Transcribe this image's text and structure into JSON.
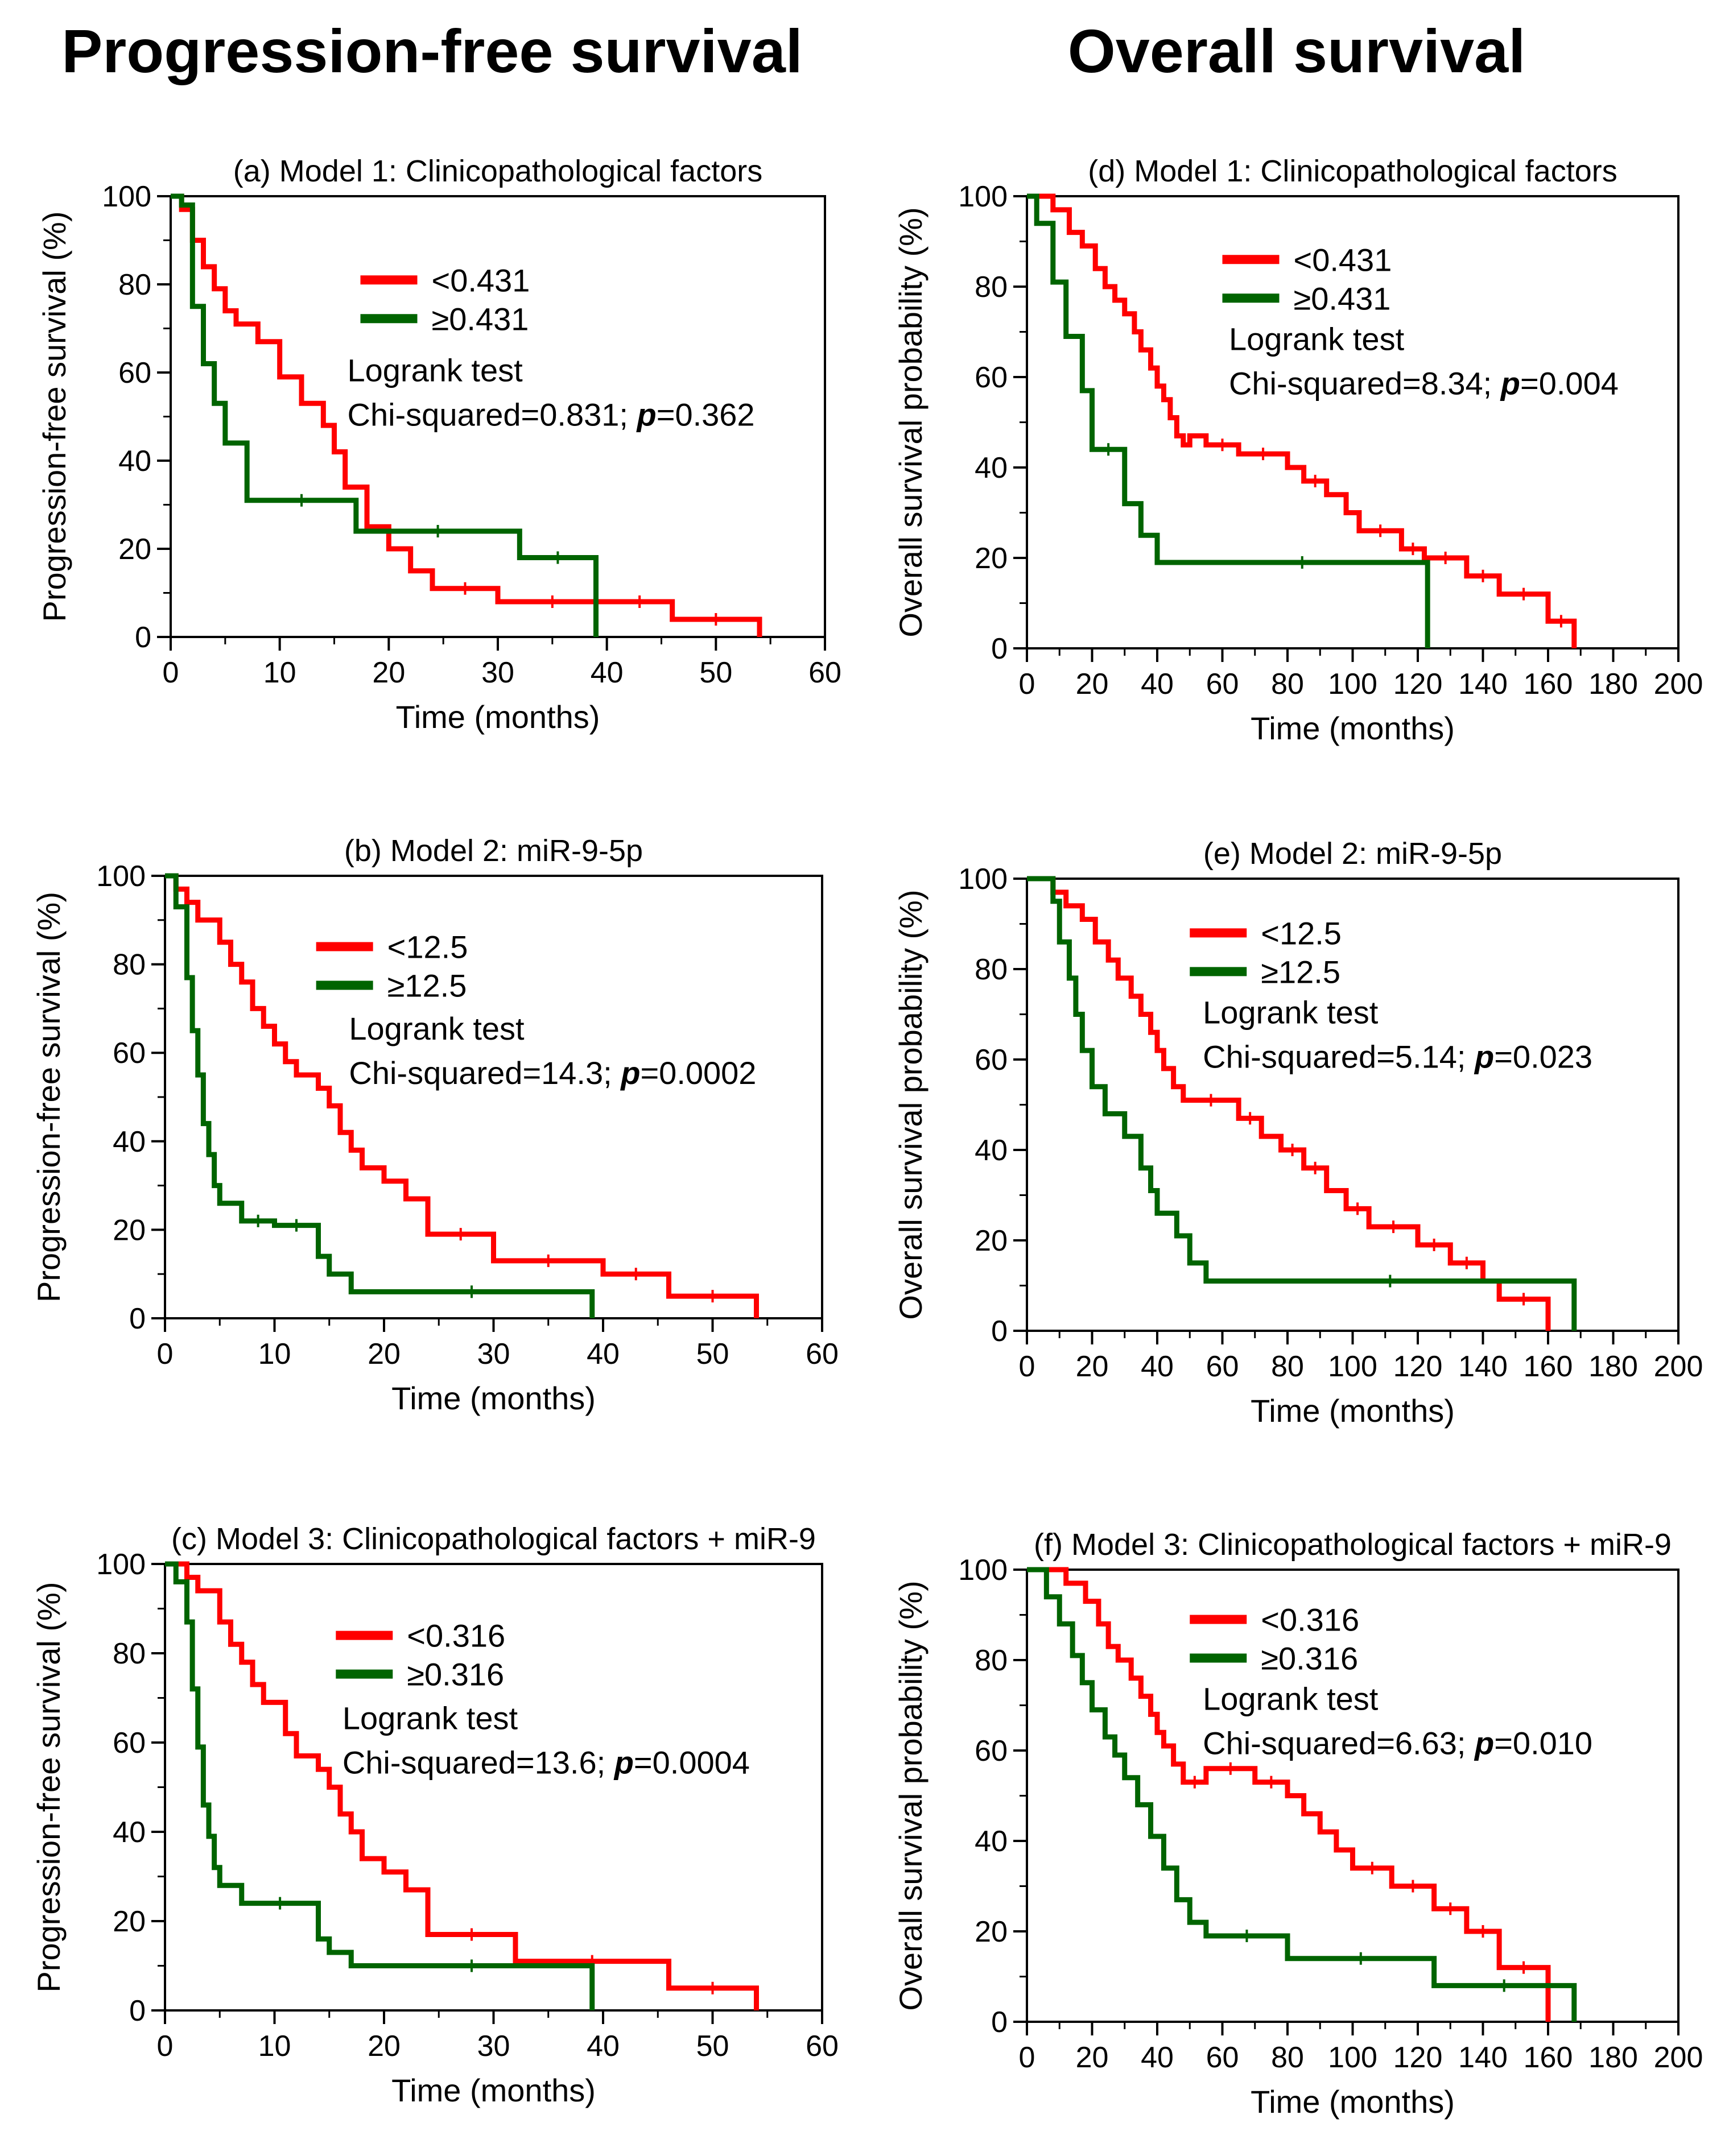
{
  "column_titles": {
    "left": "Progression-free survival",
    "right": "Overall survival"
  },
  "colors": {
    "low": "#ff0000",
    "high": "#006400",
    "axis": "#000000"
  },
  "chart_data": [
    {
      "id": "a",
      "type": "line",
      "title": "(a) Model 1: Clinicopathological factors",
      "xlabel": "Time (months)",
      "ylabel": "Progression-free survival (%)",
      "xlim": [
        0,
        60
      ],
      "ylim": [
        0,
        100
      ],
      "xticks": [
        0,
        10,
        20,
        30,
        40,
        50,
        60
      ],
      "yticks": [
        0,
        20,
        40,
        60,
        80,
        100
      ],
      "legend": {
        "position": "top-right",
        "entries": [
          "<0.431",
          "≥0.431"
        ]
      },
      "test_label": "Logrank test",
      "chi_text": "Chi-squared=0.831; ",
      "p_label": "p",
      "p_text": "=0.362",
      "series": [
        {
          "name": "<0.431",
          "x": [
            0,
            1,
            2,
            3,
            4,
            5,
            6,
            8,
            10,
            12,
            14,
            15,
            16,
            18,
            20,
            22,
            24,
            30,
            40,
            46,
            54
          ],
          "y": [
            100,
            97,
            90,
            84,
            79,
            74,
            71,
            67,
            59,
            53,
            48,
            42,
            34,
            25,
            20,
            15,
            11,
            8,
            8,
            4,
            0
          ]
        },
        {
          "name": "≥0.431",
          "x": [
            0,
            1,
            2,
            3,
            4,
            5,
            7,
            17,
            32,
            39
          ],
          "y": [
            100,
            98,
            75,
            62,
            53,
            44,
            31,
            24,
            18,
            0
          ]
        }
      ]
    },
    {
      "id": "b",
      "type": "line",
      "title": "(b) Model 2:  miR-9-5p",
      "xlabel": "Time (months)",
      "ylabel": "Progression-free survival (%)",
      "xlim": [
        0,
        60
      ],
      "ylim": [
        0,
        100
      ],
      "xticks": [
        0,
        10,
        20,
        30,
        40,
        50,
        60
      ],
      "yticks": [
        0,
        20,
        40,
        60,
        80,
        100
      ],
      "legend": {
        "position": "top-right",
        "entries": [
          "<12.5",
          "≥12.5"
        ]
      },
      "test_label": "Logrank test",
      "chi_text": "Chi-squared=14.3; ",
      "p_label": "p",
      "p_text": "=0.0002",
      "series": [
        {
          "name": "<12.5",
          "x": [
            0,
            1,
            2,
            3,
            5,
            6,
            7,
            8,
            9,
            10,
            11,
            12,
            14,
            15,
            16,
            17,
            18,
            20,
            22,
            24,
            30,
            40,
            46,
            54
          ],
          "y": [
            100,
            97,
            94,
            90,
            85,
            80,
            76,
            70,
            66,
            62,
            58,
            55,
            52,
            48,
            42,
            38,
            34,
            31,
            27,
            19,
            13,
            10,
            5,
            0
          ]
        },
        {
          "name": "≥12.5",
          "x": [
            0,
            1,
            2,
            2.5,
            3,
            3.5,
            4,
            4.5,
            5,
            7,
            10,
            14,
            15,
            17,
            39
          ],
          "y": [
            100,
            93,
            77,
            65,
            55,
            44,
            37,
            30,
            26,
            22,
            21,
            14,
            10,
            6,
            0
          ]
        }
      ]
    },
    {
      "id": "c",
      "type": "line",
      "title": "(c) Model 3: Clinicopathological factors + miR-9",
      "xlabel": "Time (months)",
      "ylabel": "Progression-free survival (%)",
      "xlim": [
        0,
        60
      ],
      "ylim": [
        0,
        100
      ],
      "xticks": [
        0,
        10,
        20,
        30,
        40,
        50,
        60
      ],
      "yticks": [
        0,
        20,
        40,
        60,
        80,
        100
      ],
      "legend": {
        "position": "top-right",
        "entries": [
          "<0.316",
          "≥0.316"
        ]
      },
      "test_label": "Logrank test",
      "chi_text": "Chi-squared=13.6; ",
      "p_label": "p",
      "p_text": "=0.0004",
      "series": [
        {
          "name": "<0.316",
          "x": [
            0,
            2,
            3,
            5,
            6,
            7,
            8,
            9,
            11,
            12,
            14,
            15,
            16,
            17,
            18,
            20,
            22,
            24,
            32,
            46,
            54
          ],
          "y": [
            100,
            97,
            94,
            87,
            82,
            78,
            73,
            69,
            62,
            57,
            54,
            50,
            44,
            40,
            34,
            31,
            27,
            17,
            11,
            5,
            0
          ]
        },
        {
          "name": "≥0.316",
          "x": [
            0,
            1,
            2,
            2.5,
            3,
            3.5,
            4,
            4.5,
            5,
            7,
            14,
            15,
            17,
            39
          ],
          "y": [
            100,
            96,
            87,
            72,
            59,
            46,
            39,
            32,
            28,
            24,
            16,
            13,
            10,
            0
          ]
        }
      ]
    },
    {
      "id": "d",
      "type": "line",
      "title": "(d) Model 1: Clinicopathological factors",
      "xlabel": "Time (months)",
      "ylabel": "Overall survival probability (%)",
      "xlim": [
        0,
        200
      ],
      "ylim": [
        0,
        100
      ],
      "xticks": [
        0,
        20,
        40,
        60,
        80,
        100,
        120,
        140,
        160,
        180,
        200
      ],
      "yticks": [
        0,
        20,
        40,
        60,
        80,
        100
      ],
      "legend": {
        "position": "top-right",
        "entries": [
          "<0.431",
          "≥0.431"
        ]
      },
      "test_label": "Logrank test",
      "chi_text": "Chi-squared=8.34; ",
      "p_label": "p",
      "p_text": "=0.004",
      "series": [
        {
          "name": "<0.431",
          "x": [
            0,
            8,
            13,
            17,
            21,
            24,
            27,
            30,
            33,
            35,
            38,
            40,
            42,
            44,
            46,
            48,
            50,
            55,
            65,
            80,
            85,
            92,
            98,
            102,
            115,
            122,
            135,
            145,
            160,
            168
          ],
          "y": [
            100,
            97,
            92,
            89,
            84,
            80,
            77,
            74,
            70,
            66,
            62,
            58,
            55,
            51,
            47,
            45,
            47,
            45,
            43,
            40,
            37,
            34,
            30,
            26,
            22,
            20,
            16,
            12,
            6,
            0
          ]
        },
        {
          "name": "≥0.431",
          "x": [
            0,
            3,
            8,
            12,
            17,
            20,
            30,
            35,
            40,
            46,
            123
          ],
          "y": [
            100,
            94,
            81,
            69,
            57,
            44,
            32,
            25,
            19,
            19,
            0
          ]
        }
      ]
    },
    {
      "id": "e",
      "type": "line",
      "title": "(e) Model 2: miR-9-5p",
      "xlabel": "Time (months)",
      "ylabel": "Overall survival probability (%)",
      "xlim": [
        0,
        200
      ],
      "ylim": [
        0,
        100
      ],
      "xticks": [
        0,
        20,
        40,
        60,
        80,
        100,
        120,
        140,
        160,
        180,
        200
      ],
      "yticks": [
        0,
        20,
        40,
        60,
        80,
        100
      ],
      "legend": {
        "position": "top-right",
        "entries": [
          "<12.5",
          "≥12.5"
        ]
      },
      "test_label": "Logrank test",
      "chi_text": "Chi-squared=5.14; ",
      "p_label": "p",
      "p_text": "=0.023",
      "series": [
        {
          "name": "<12.5",
          "x": [
            0,
            8,
            12,
            17,
            21,
            25,
            28,
            32,
            35,
            38,
            40,
            42,
            45,
            48,
            65,
            72,
            78,
            85,
            92,
            98,
            105,
            120,
            130,
            140,
            145,
            160
          ],
          "y": [
            100,
            97,
            94,
            91,
            86,
            82,
            78,
            74,
            70,
            66,
            62,
            58,
            54,
            51,
            47,
            43,
            40,
            36,
            31,
            27,
            23,
            19,
            15,
            11,
            7,
            0
          ]
        },
        {
          "name": "≥12.5",
          "x": [
            0,
            8,
            10,
            13,
            15,
            17,
            20,
            24,
            30,
            35,
            38,
            40,
            46,
            50,
            55,
            168
          ],
          "y": [
            100,
            95,
            86,
            78,
            70,
            62,
            54,
            48,
            43,
            36,
            31,
            26,
            21,
            15,
            11,
            0
          ]
        }
      ]
    },
    {
      "id": "f",
      "type": "line",
      "title": "(f) Model 3: Clinicopathological factors + miR-9",
      "xlabel": "Time (months)",
      "ylabel": "Overall survival probability (%)",
      "xlim": [
        0,
        200
      ],
      "ylim": [
        0,
        100
      ],
      "xticks": [
        0,
        20,
        40,
        60,
        80,
        100,
        120,
        140,
        160,
        180,
        200
      ],
      "yticks": [
        0,
        20,
        40,
        60,
        80,
        100
      ],
      "legend": {
        "position": "top-right",
        "entries": [
          "<0.316",
          "≥0.316"
        ]
      },
      "test_label": "Logrank test",
      "chi_text": "Chi-squared=6.63; ",
      "p_label": "p",
      "p_text": "=0.010",
      "series": [
        {
          "name": "<0.316",
          "x": [
            0,
            12,
            18,
            22,
            25,
            28,
            32,
            35,
            38,
            40,
            42,
            45,
            48,
            55,
            70,
            80,
            85,
            90,
            95,
            100,
            112,
            125,
            135,
            145,
            160
          ],
          "y": [
            100,
            97,
            93,
            88,
            83,
            80,
            76,
            72,
            68,
            64,
            61,
            57,
            53,
            56,
            53,
            50,
            46,
            42,
            38,
            34,
            30,
            25,
            20,
            12,
            0
          ]
        },
        {
          "name": "≥0.316",
          "x": [
            0,
            6,
            10,
            14,
            17,
            20,
            24,
            27,
            30,
            34,
            38,
            42,
            46,
            50,
            55,
            80,
            125,
            168
          ],
          "y": [
            100,
            94,
            88,
            81,
            75,
            69,
            63,
            59,
            54,
            48,
            41,
            34,
            27,
            22,
            19,
            14,
            8,
            0
          ]
        }
      ]
    }
  ]
}
